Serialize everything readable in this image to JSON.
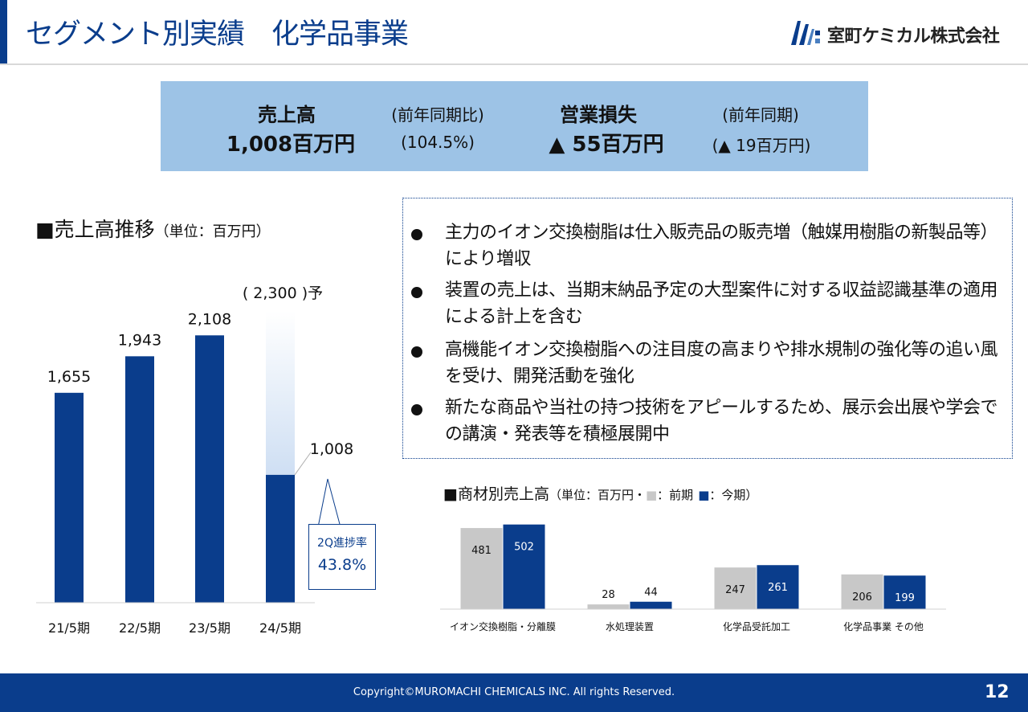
{
  "header": {
    "title": "セグメント別実績　化学品事業",
    "company": "室町ケミカル株式会社",
    "logo_icon": "company-logo-icon",
    "accent_color": "#0a3d8c"
  },
  "summary": {
    "sales_label": "売上高",
    "sales_value": "1,008百万円",
    "sales_yoy_label": "(前年同期比)",
    "sales_yoy_value": "(104.5%)",
    "op_label": "営業損失",
    "op_value": "▲ 55百万円",
    "op_prev_label": "(前年同期)",
    "op_prev_value": "(▲ 19百万円)",
    "background_color": "#9dc3e6"
  },
  "sales_trend": {
    "title_marker": "■",
    "title": "売上高推移",
    "unit": "（単位：百万円）",
    "forecast_label": "( 2,300 )予",
    "callout_line1": "2Q進捗率",
    "callout_line2": "43.8%",
    "chart_data": {
      "type": "bar",
      "categories": [
        "21/5期",
        "22/5期",
        "23/5期",
        "24/5期"
      ],
      "values": [
        1655,
        1943,
        2108,
        1008
      ],
      "value_labels": [
        "1,655",
        "1,943",
        "2,108",
        "1,008"
      ],
      "forecast": {
        "category": "24/5期",
        "value": 2300
      },
      "ylim": [
        0,
        2300
      ],
      "bar_color": "#0a3d8c",
      "forecast_color": "#c5d9f0",
      "grid": false
    }
  },
  "bullets": [
    "主力のイオン交換樹脂は仕入販売品の販売増（触媒用樹脂の新製品等）により増収",
    "装置の売上は、当期末納品予定の大型案件に対する収益認識基準の適用による計上を含む",
    "高機能イオン交換樹脂への注目度の高まりや排水規制の強化等の追い風を受け、開発活動を強化",
    "新たな商品や当社の持つ技術をアピールするため、展示会出展や学会での講演・発表等を積極展開中"
  ],
  "product_sales": {
    "title_marker": "■",
    "title": "商材別売上高",
    "unit_pre": "（単位：百万円・",
    "legend_prev_marker": "■",
    "legend_prev": "：前期",
    "legend_curr_marker": "■",
    "legend_curr": "：今期）",
    "chart_data": {
      "type": "bar",
      "categories": [
        "イオン交換樹脂・分離膜",
        "水処理装置",
        "化学品受託加工",
        "化学品事業 その他"
      ],
      "series": [
        {
          "name": "前期",
          "values": [
            481,
            28,
            247,
            206
          ],
          "color": "#c8c8c8"
        },
        {
          "name": "今期",
          "values": [
            502,
            44,
            261,
            199
          ],
          "color": "#0a3d8c"
        }
      ],
      "ylim": [
        0,
        510
      ],
      "legend": "top",
      "grid": false
    }
  },
  "footer": {
    "copyright": "Copyright©MUROMACHI CHEMICALS INC. All rights Reserved.",
    "page_number": "12"
  }
}
